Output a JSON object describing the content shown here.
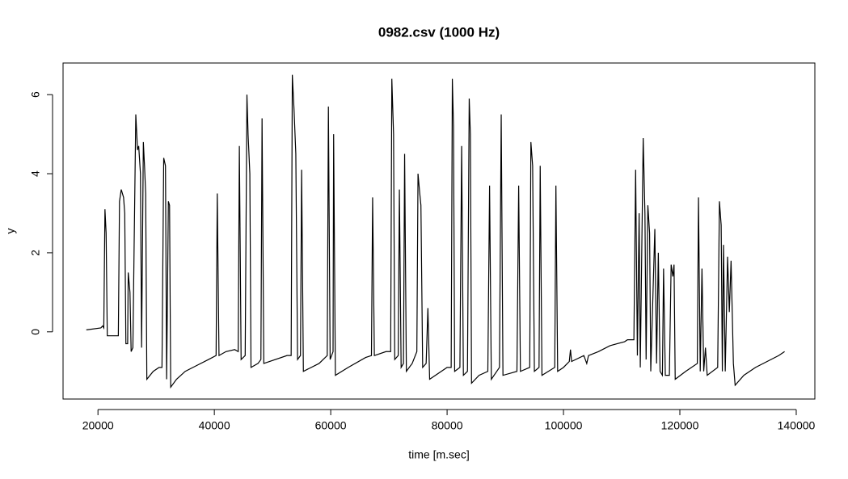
{
  "chart_data": {
    "type": "line",
    "title": "0982.csv (1000 Hz)",
    "x_label": "time [m.sec]",
    "y_label": "y",
    "xlim": [
      14000,
      143200
    ],
    "ylim": [
      -1.7,
      6.8
    ],
    "xticks": [
      20000,
      40000,
      60000,
      80000,
      100000,
      120000,
      140000
    ],
    "yticks": [
      0,
      2,
      4,
      6
    ],
    "grid": false,
    "series": [
      {
        "color": "#000000",
        "x": [
          18000,
          20500,
          20800,
          21000,
          21200,
          21400,
          21600,
          23500,
          23700,
          24000,
          24400,
          24600,
          24800,
          25100,
          25200,
          25500,
          25700,
          26000,
          26200,
          26500,
          26800,
          27000,
          27300,
          27500,
          27800,
          28000,
          28200,
          28400,
          29500,
          30500,
          31000,
          31300,
          31600,
          31800,
          32100,
          32300,
          32500,
          33500,
          35000,
          37000,
          39000,
          40300,
          40500,
          40800,
          42000,
          43500,
          44100,
          44300,
          44600,
          45300,
          45600,
          45800,
          46100,
          46300,
          47500,
          48000,
          48200,
          48500,
          52500,
          53200,
          53400,
          53700,
          54000,
          54300,
          54800,
          55000,
          55300,
          58000,
          59400,
          59600,
          59900,
          60400,
          60500,
          60800,
          63000,
          66000,
          67000,
          67200,
          67500,
          69500,
          70300,
          70500,
          70800,
          71000,
          71600,
          71800,
          72100,
          72500,
          72700,
          73000,
          74000,
          74800,
          75000,
          75300,
          75500,
          75800,
          76400,
          76700,
          77000,
          80000,
          80700,
          80900,
          81100,
          81300,
          82200,
          82500,
          82800,
          83500,
          83800,
          84000,
          84200,
          85500,
          87000,
          87300,
          87600,
          89000,
          89300,
          89600,
          92000,
          92300,
          92600,
          94200,
          94400,
          94700,
          95000,
          95800,
          96000,
          96300,
          98500,
          98700,
          99000,
          100000,
          101000,
          101200,
          101400,
          103500,
          104000,
          104300,
          106000,
          108000,
          110500,
          111000,
          112100,
          112400,
          112700,
          113000,
          113200,
          113700,
          114000,
          114200,
          114500,
          114800,
          115000,
          115700,
          116000,
          116300,
          116600,
          117000,
          117200,
          117500,
          118200,
          118500,
          118800,
          119000,
          119200,
          121000,
          123000,
          123200,
          123500,
          123800,
          124100,
          124400,
          124700,
          126500,
          126800,
          127100,
          127300,
          127500,
          127800,
          128200,
          128500,
          128800,
          129200,
          129500,
          131000,
          133000,
          135000,
          137000,
          138000
        ],
        "values": [
          0.05,
          0.1,
          0.15,
          0.1,
          3.1,
          2.5,
          -0.1,
          -0.1,
          3.3,
          3.6,
          3.4,
          3.0,
          -0.3,
          -0.3,
          1.5,
          1.0,
          -0.5,
          -0.4,
          2.0,
          5.5,
          4.6,
          4.7,
          4.0,
          -0.4,
          4.8,
          4.2,
          3.5,
          -1.2,
          -1.0,
          -0.9,
          -0.9,
          4.4,
          4.2,
          -1.2,
          3.3,
          3.2,
          -1.4,
          -1.2,
          -1.0,
          -0.85,
          -0.7,
          -0.6,
          3.5,
          -0.6,
          -0.5,
          -0.45,
          -0.5,
          4.7,
          -0.7,
          -0.6,
          6.0,
          5.0,
          4.0,
          -0.9,
          -0.8,
          -0.7,
          5.4,
          -0.8,
          -0.6,
          -0.6,
          6.5,
          5.6,
          4.5,
          -0.7,
          -0.6,
          4.1,
          -1.0,
          -0.8,
          -0.6,
          5.7,
          -0.7,
          -0.5,
          5.0,
          -1.1,
          -0.9,
          -0.65,
          -0.6,
          3.4,
          -0.6,
          -0.5,
          -0.5,
          6.4,
          5.0,
          -0.7,
          -0.6,
          3.6,
          -0.9,
          -0.8,
          4.5,
          -1.0,
          -0.8,
          -0.5,
          4.0,
          3.5,
          3.2,
          -0.9,
          -0.8,
          0.6,
          -1.2,
          -0.9,
          -0.9,
          6.4,
          5.2,
          -1.0,
          -0.9,
          4.7,
          -1.1,
          -1.0,
          5.9,
          5.0,
          -1.3,
          -1.1,
          -1.0,
          3.7,
          -1.2,
          -0.9,
          5.5,
          -1.1,
          -1.0,
          3.7,
          -1.0,
          -0.9,
          4.8,
          4.2,
          -1.0,
          -0.9,
          4.2,
          -1.1,
          -0.9,
          3.7,
          -1.0,
          -0.9,
          -0.75,
          -0.45,
          -0.75,
          -0.6,
          -0.8,
          -0.6,
          -0.5,
          -0.35,
          -0.25,
          -0.2,
          -0.2,
          4.1,
          -0.6,
          3.0,
          -0.9,
          4.9,
          3.0,
          -0.7,
          3.2,
          2.5,
          -1.0,
          2.6,
          -0.8,
          2.0,
          -1.0,
          -1.1,
          1.6,
          -1.1,
          -1.1,
          1.7,
          1.4,
          1.7,
          -1.2,
          -1.0,
          -0.8,
          3.4,
          -1.0,
          1.6,
          -1.0,
          -0.4,
          -1.1,
          -0.9,
          3.3,
          2.7,
          -1.0,
          2.2,
          -1.0,
          1.9,
          0.5,
          1.8,
          -0.8,
          -1.35,
          -1.1,
          -0.9,
          -0.75,
          -0.6,
          -0.5
        ]
      }
    ]
  }
}
